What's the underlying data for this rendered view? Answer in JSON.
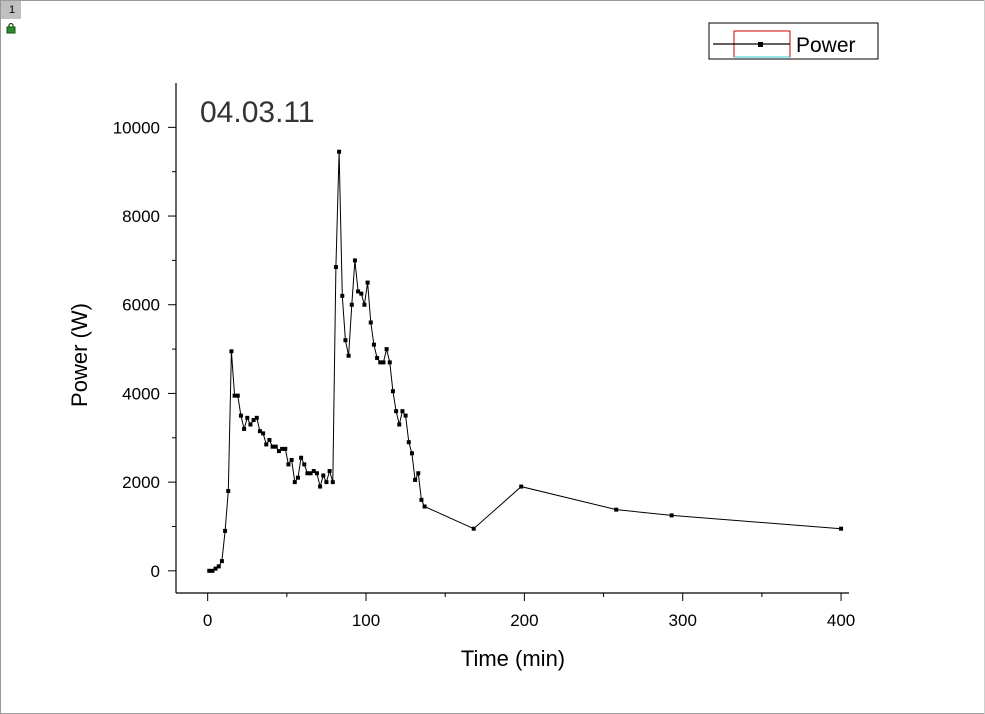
{
  "page": {
    "tab_label": "1"
  },
  "icons": {
    "lock": "lock-icon"
  },
  "chart_data": {
    "type": "line",
    "title": "",
    "annotation": "04.03.11",
    "xlabel": "Time (min)",
    "ylabel": "Power (W)",
    "xlim": [
      -20,
      405
    ],
    "ylim": [
      -500,
      11000
    ],
    "xticks": [
      0,
      100,
      200,
      300,
      400
    ],
    "xtick_labels": [
      "0",
      "100",
      "200",
      "300",
      "400"
    ],
    "yticks": [
      0,
      2000,
      4000,
      6000,
      8000,
      10000
    ],
    "ytick_labels": [
      "0",
      "2000",
      "4000",
      "6000",
      "8000",
      "10000"
    ],
    "grid": false,
    "legend_position": "top-right",
    "series": [
      {
        "name": "Power",
        "color": "#000000",
        "marker": "square",
        "x": [
          1,
          3,
          5,
          7,
          9,
          11,
          13,
          15,
          17,
          19,
          21,
          23,
          25,
          27,
          29,
          31,
          33,
          35,
          37,
          39,
          41,
          43,
          45,
          47,
          49,
          51,
          53,
          55,
          57,
          59,
          61,
          63,
          65,
          67,
          69,
          71,
          73,
          75,
          77,
          79,
          81,
          83,
          85,
          87,
          89,
          91,
          93,
          95,
          97,
          99,
          101,
          103,
          105,
          107,
          109,
          111,
          113,
          115,
          117,
          119,
          121,
          123,
          125,
          127,
          129,
          131,
          133,
          135,
          137,
          168,
          198,
          258,
          293,
          400
        ],
        "y": [
          0,
          0,
          50,
          100,
          220,
          900,
          1800,
          4950,
          3950,
          3950,
          3500,
          3200,
          3450,
          3300,
          3400,
          3450,
          3150,
          3100,
          2850,
          2950,
          2800,
          2800,
          2700,
          2750,
          2750,
          2400,
          2500,
          2000,
          2100,
          2550,
          2400,
          2200,
          2200,
          2250,
          2200,
          1900,
          2150,
          2000,
          2250,
          2000,
          6850,
          9450,
          6200,
          5200,
          4850,
          6000,
          7000,
          6300,
          6250,
          6000,
          6500,
          5600,
          5100,
          4800,
          4700,
          4700,
          5000,
          4700,
          4050,
          3600,
          3300,
          3600,
          3500,
          2900,
          2650,
          2050,
          2200,
          1600,
          1450,
          950,
          1900,
          1380,
          1250,
          950
        ]
      }
    ]
  }
}
